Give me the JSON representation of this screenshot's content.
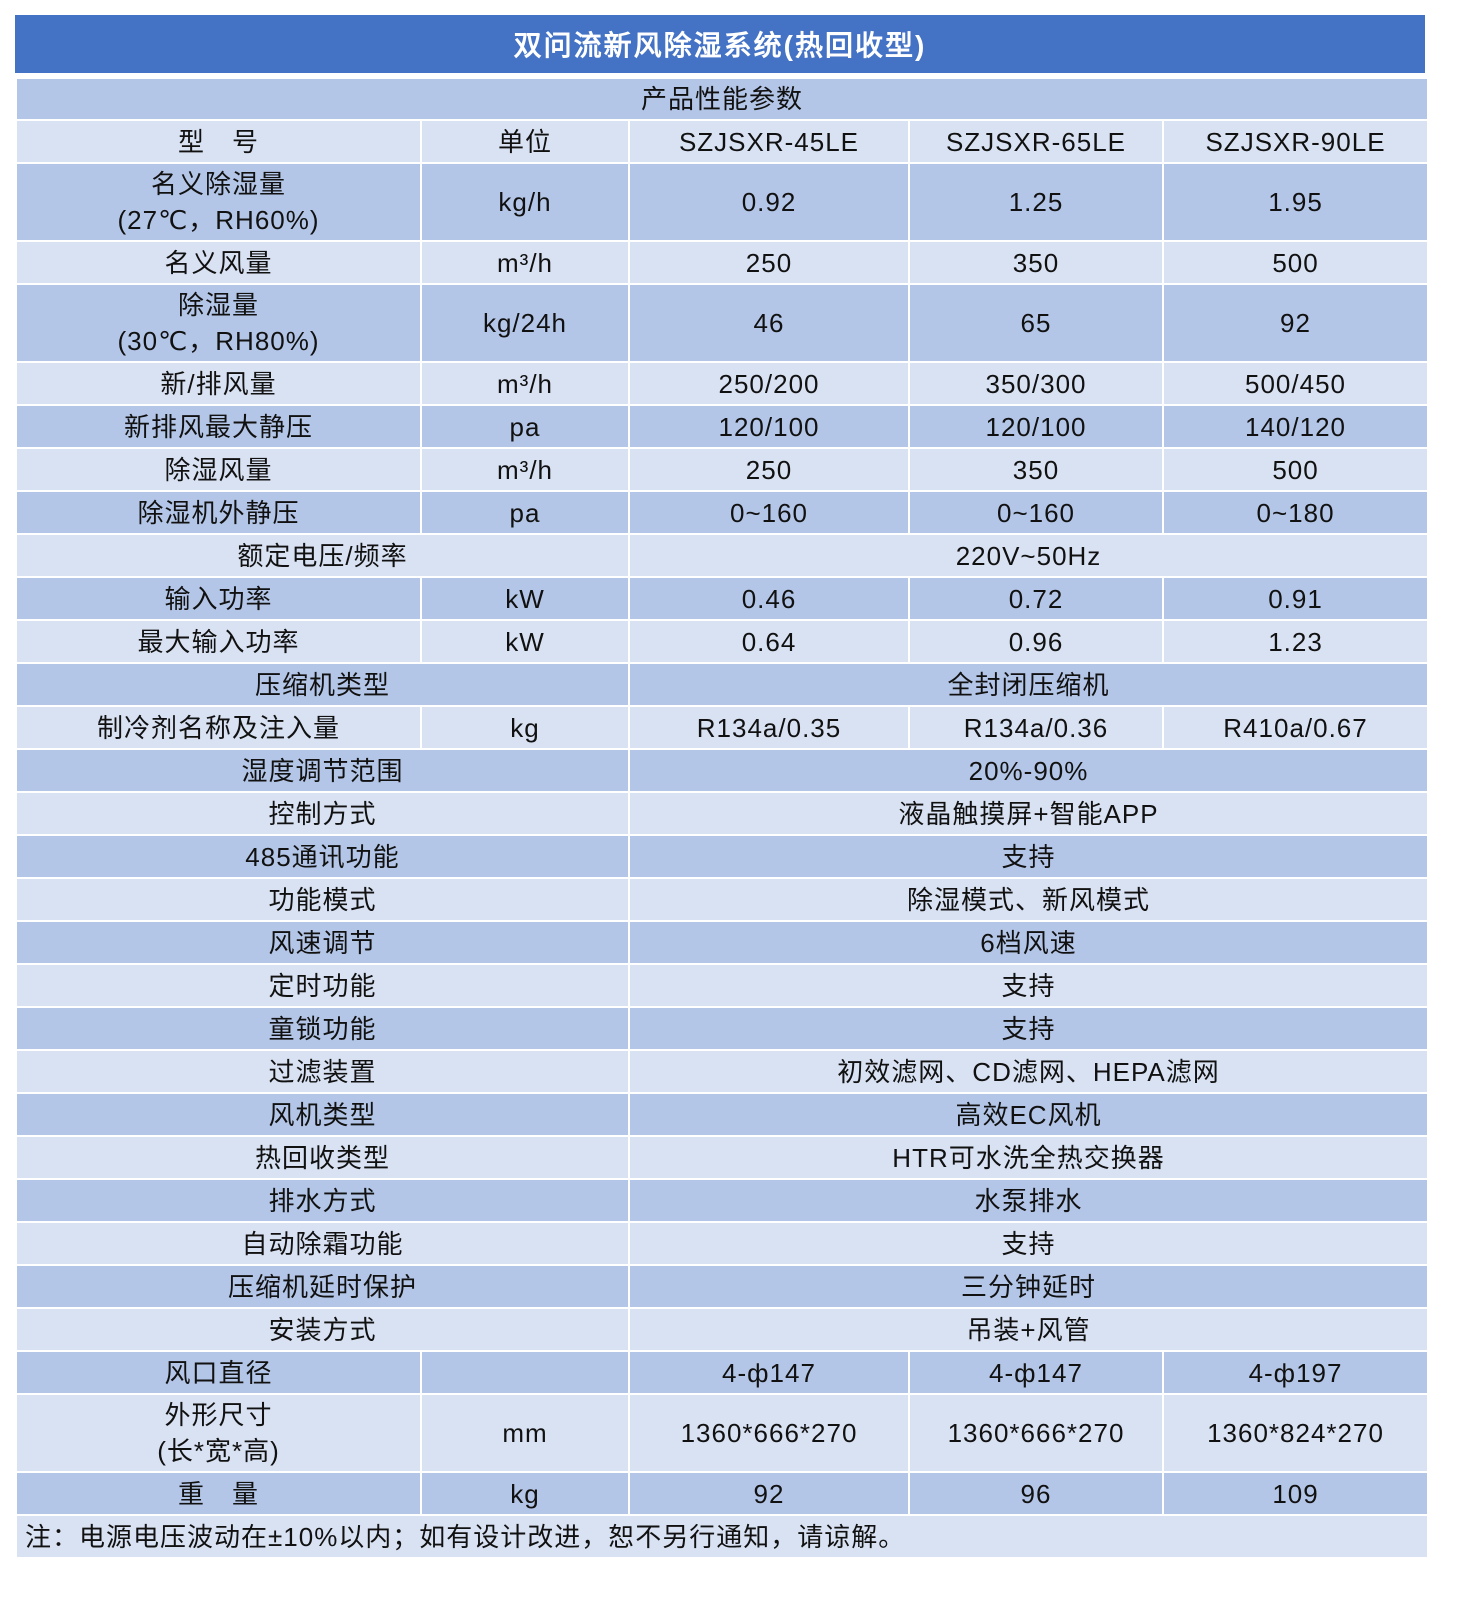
{
  "title": "双问流新风除湿系统(热回收型)",
  "subtitle": "产品性能参数",
  "colors": {
    "header": "#4472C4",
    "row_dark": "#B4C6E7",
    "row_light": "#D9E2F3"
  },
  "header": {
    "label": "型　号",
    "unit": "单位",
    "models": [
      "SZJSXR-45LE",
      "SZJSXR-65LE",
      "SZJSXR-90LE"
    ]
  },
  "rows": [
    {
      "label": "名义除湿量",
      "label2": "(27℃，RH60%)",
      "unit": "kg/h",
      "values": [
        "0.92",
        "1.25",
        "1.95"
      ]
    },
    {
      "label": "名义风量",
      "unit": "m³/h",
      "values": [
        "250",
        "350",
        "500"
      ]
    },
    {
      "label": "除湿量",
      "label2": "(30℃，RH80%)",
      "unit": "kg/24h",
      "values": [
        "46",
        "65",
        "92"
      ]
    },
    {
      "label": "新/排风量",
      "unit": "m³/h",
      "values": [
        "250/200",
        "350/300",
        "500/450"
      ]
    },
    {
      "label": "新排风最大静压",
      "unit": "pa",
      "values": [
        "120/100",
        "120/100",
        "140/120"
      ]
    },
    {
      "label": "除湿风量",
      "unit": "m³/h",
      "values": [
        "250",
        "350",
        "500"
      ]
    },
    {
      "label": "除湿机外静压",
      "unit": "pa",
      "values": [
        "0~160",
        "0~160",
        "0~180"
      ]
    },
    {
      "label": "额定电压/频率",
      "value": "220V~50Hz"
    },
    {
      "label": "输入功率",
      "unit": "kW",
      "values": [
        "0.46",
        "0.72",
        "0.91"
      ]
    },
    {
      "label": "最大输入功率",
      "unit": "kW",
      "values": [
        "0.64",
        "0.96",
        "1.23"
      ]
    },
    {
      "label": "压缩机类型",
      "value": "全封闭压缩机"
    },
    {
      "label": "制冷剂名称及注入量",
      "unit": "kg",
      "values": [
        "R134a/0.35",
        "R134a/0.36",
        "R410a/0.67"
      ]
    },
    {
      "label": "湿度调节范围",
      "value": "20%-90%"
    },
    {
      "label": "控制方式",
      "value": "液晶触摸屏+智能APP"
    },
    {
      "label": "485通讯功能",
      "value": "支持"
    },
    {
      "label": "功能模式",
      "value": "除湿模式、新风模式"
    },
    {
      "label": "风速调节",
      "value": "6档风速"
    },
    {
      "label": "定时功能",
      "value": "支持"
    },
    {
      "label": "童锁功能",
      "value": "支持"
    },
    {
      "label": "过滤装置",
      "value": "初效滤网、CD滤网、HEPA滤网"
    },
    {
      "label": "风机类型",
      "value": "高效EC风机"
    },
    {
      "label": "热回收类型",
      "value": "HTR可水洗全热交换器"
    },
    {
      "label": "排水方式",
      "value": "水泵排水"
    },
    {
      "label": "自动除霜功能",
      "value": "支持"
    },
    {
      "label": "压缩机延时保护",
      "value": "三分钟延时"
    },
    {
      "label": "安装方式",
      "value": "吊装+风管"
    },
    {
      "label": "风口直径",
      "unit": "",
      "values": [
        "4-ф147",
        "4-ф147",
        "4-ф197"
      ]
    },
    {
      "label": "外形尺寸",
      "label2": "(长*宽*高)",
      "unit": "mm",
      "values": [
        "1360*666*270",
        "1360*666*270",
        "1360*824*270"
      ]
    },
    {
      "label": "重　量",
      "unit": "kg",
      "values": [
        "92",
        "96",
        "109"
      ]
    }
  ],
  "note": "注：电源电压波动在±10%以内；如有设计改进，恕不另行通知，请谅解。"
}
